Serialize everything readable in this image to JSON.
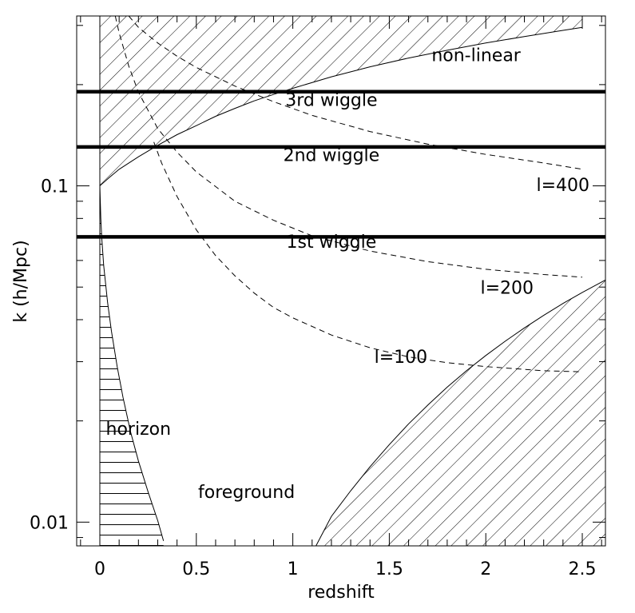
{
  "chart_data": {
    "type": "line",
    "xlabel": "redshift",
    "ylabel": "k (h/Mpc)",
    "xlim": [
      -0.12,
      2.62
    ],
    "ylim": [
      0.0085,
      0.32
    ],
    "yscale": "log",
    "grid": false,
    "x_ticks": [
      {
        "value": 0,
        "label": "0"
      },
      {
        "value": 0.5,
        "label": "0.5"
      },
      {
        "value": 1,
        "label": "1"
      },
      {
        "value": 1.5,
        "label": "1.5"
      },
      {
        "value": 2,
        "label": "2"
      },
      {
        "value": 2.5,
        "label": "2.5"
      }
    ],
    "y_ticks": [
      {
        "value": 0.01,
        "label": "0.01"
      },
      {
        "value": 0.1,
        "label": "0.1"
      }
    ],
    "wiggles": [
      {
        "label": "1st wiggle",
        "k": 0.0705,
        "label_x": 1.2,
        "label_k": 0.0655
      },
      {
        "label": "2nd wiggle",
        "k": 0.1305,
        "label_x": 1.2,
        "label_k": 0.1185
      },
      {
        "label": "3rd wiggle",
        "k": 0.1905,
        "label_x": 1.2,
        "label_k": 0.173
      }
    ],
    "nonlinear_boundary": {
      "label": "non-linear",
      "label_x": 1.95,
      "label_k": 0.235,
      "x": [
        0,
        0.05,
        0.1,
        0.2,
        0.3,
        0.4,
        0.5,
        0.6,
        0.7,
        0.8,
        0.9,
        1.0,
        1.2,
        1.4,
        1.6,
        1.8,
        2.0,
        2.2,
        2.4,
        2.5
      ],
      "k": [
        0.1,
        0.106,
        0.112,
        0.122,
        0.132,
        0.142,
        0.151,
        0.161,
        0.17,
        0.179,
        0.187,
        0.195,
        0.211,
        0.226,
        0.24,
        0.253,
        0.266,
        0.278,
        0.29,
        0.296
      ]
    },
    "horizon_boundary": {
      "label": "horizon",
      "label_x": 0.2,
      "label_k": 0.0182,
      "x": [
        0.0,
        0.005,
        0.01,
        0.02,
        0.04,
        0.06,
        0.09,
        0.12,
        0.16,
        0.2,
        0.25,
        0.3,
        0.33
      ],
      "k": [
        0.1,
        0.08,
        0.07,
        0.058,
        0.045,
        0.037,
        0.029,
        0.0235,
        0.0185,
        0.0152,
        0.0123,
        0.0101,
        0.0088
      ]
    },
    "foreground_boundary": {
      "label": "foreground",
      "label_x": 0.76,
      "label_k": 0.0118,
      "x": [
        1.12,
        1.2,
        1.3,
        1.4,
        1.5,
        1.6,
        1.7,
        1.8,
        1.9,
        2.0,
        2.1,
        2.2,
        2.3,
        2.4,
        2.5,
        2.62
      ],
      "k": [
        0.0085,
        0.0104,
        0.0124,
        0.0146,
        0.017,
        0.0196,
        0.0223,
        0.0252,
        0.0282,
        0.0313,
        0.0345,
        0.0378,
        0.0412,
        0.0447,
        0.0482,
        0.0525
      ]
    },
    "series": [
      {
        "name": "l=400",
        "label_x": 2.4,
        "label_k": 0.0965,
        "x": [
          0.15,
          0.2,
          0.3,
          0.4,
          0.5,
          0.7,
          0.9,
          1.1,
          1.4,
          1.7,
          2.0,
          2.3,
          2.5
        ],
        "k": [
          0.32,
          0.296,
          0.266,
          0.243,
          0.225,
          0.198,
          0.178,
          0.162,
          0.145,
          0.133,
          0.124,
          0.117,
          0.112
        ]
      },
      {
        "name": "l=200",
        "label_x": 2.11,
        "label_k": 0.0478,
        "x": [
          0.08,
          0.1,
          0.15,
          0.2,
          0.3,
          0.4,
          0.5,
          0.7,
          0.9,
          1.1,
          1.4,
          1.7,
          2.0,
          2.3,
          2.5
        ],
        "k": [
          0.32,
          0.285,
          0.227,
          0.19,
          0.148,
          0.126,
          0.11,
          0.09,
          0.079,
          0.071,
          0.064,
          0.0595,
          0.0565,
          0.0545,
          0.0535
        ]
      },
      {
        "name": "l=100",
        "label_x": 1.56,
        "label_k": 0.0298,
        "x": [
          0.28,
          0.32,
          0.4,
          0.5,
          0.6,
          0.7,
          0.8,
          0.9,
          1.0,
          1.2,
          1.4,
          1.6,
          1.8,
          2.0,
          2.3,
          2.5
        ],
        "k": [
          0.135,
          0.117,
          0.093,
          0.074,
          0.062,
          0.054,
          0.048,
          0.0435,
          0.0405,
          0.036,
          0.033,
          0.031,
          0.0298,
          0.029,
          0.0282,
          0.028
        ]
      }
    ]
  }
}
